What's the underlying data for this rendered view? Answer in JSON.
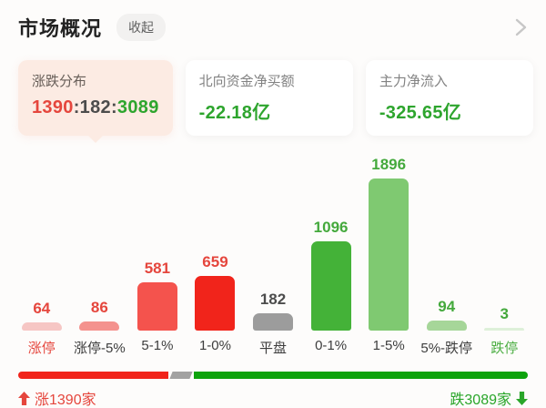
{
  "header": {
    "title": "市场概况",
    "collapse_label": "收起"
  },
  "cards": [
    {
      "title": "涨跌分布",
      "value_parts": [
        {
          "text": "1390",
          "color": "#e5463d"
        },
        {
          "text": ":",
          "color": "#4c4c4c"
        },
        {
          "text": "182",
          "color": "#4c4c4c"
        },
        {
          "text": ":",
          "color": "#4c4c4c"
        },
        {
          "text": "3089",
          "color": "#2ea52e"
        }
      ]
    },
    {
      "title": "北向资金净买额",
      "value": "-22.18亿",
      "value_color": "#2ea52e"
    },
    {
      "title": "主力净流入",
      "value": "-325.65亿",
      "value_color": "#2ea52e"
    }
  ],
  "chart_data": {
    "type": "bar",
    "title": "涨跌分布",
    "categories": [
      "涨停",
      "涨停-5%",
      "5-1%",
      "1-0%",
      "平盘",
      "0-1%",
      "1-5%",
      "5%-跌停",
      "跌停"
    ],
    "values": [
      64,
      86,
      581,
      659,
      182,
      1096,
      1896,
      94,
      3
    ],
    "bar_colors": [
      "#f6c6c4",
      "#f4928e",
      "#f4534d",
      "#f1241b",
      "#9c9c9c",
      "#44b238",
      "#7fc971",
      "#a6d699",
      "#def0d9"
    ],
    "value_colors": [
      "#e5463d",
      "#e5463d",
      "#e5463d",
      "#e5463d",
      "#4c4c4c",
      "#44a93c",
      "#44a93c",
      "#44a93c",
      "#44a93c"
    ],
    "label_colors": [
      "#e5463d",
      "#3d3d3d",
      "#3d3d3d",
      "#3d3d3d",
      "#3d3d3d",
      "#3d3d3d",
      "#3d3d3d",
      "#3d3d3d",
      "#4cae43"
    ],
    "ylim": [
      0,
      1896
    ],
    "grid": false,
    "legend_position": "none"
  },
  "footer": {
    "segments": [
      {
        "name": "advancers",
        "count": 1390,
        "color": "#f1241b"
      },
      {
        "name": "unchanged",
        "count": 182,
        "color": "#a2a2a2"
      },
      {
        "name": "decliners",
        "count": 3089,
        "color": "#0da30d"
      }
    ],
    "left_label": "涨1390家",
    "right_label": "跌3089家",
    "left_color": "#e5463d",
    "right_color": "#2aa62a",
    "arrow_up_color": "#e5463d",
    "arrow_down_color": "#2aa62a"
  }
}
